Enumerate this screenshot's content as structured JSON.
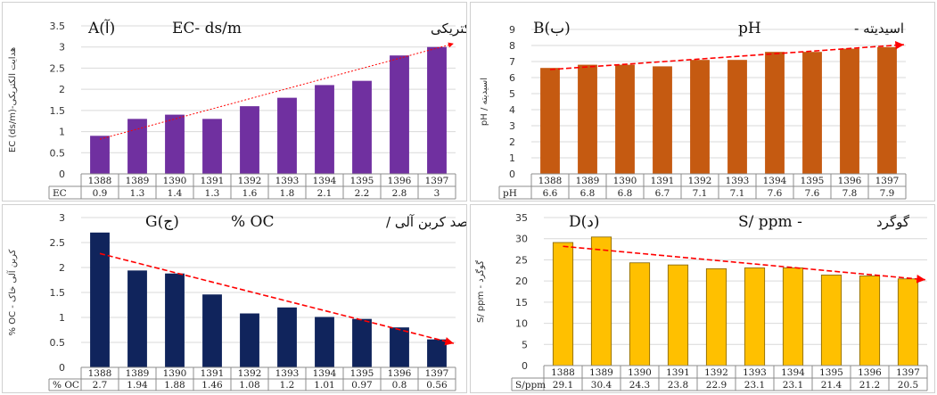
{
  "chart_data": [
    {
      "type": "bar",
      "panel_label": "A(آ)",
      "title": "EC- ds/m",
      "title_fa": "هدایت الکتریکی",
      "ylabel": "EC (ds/m)-هدایت الکتریکی",
      "table_label": "EC",
      "categories": [
        "1388",
        "1389",
        "1390",
        "1391",
        "1392",
        "1393",
        "1394",
        "1395",
        "1396",
        "1397"
      ],
      "values": [
        0.9,
        1.3,
        1.4,
        1.3,
        1.6,
        1.8,
        2.1,
        2.2,
        2.8,
        3
      ],
      "value_labels": [
        "0.9",
        "1.3",
        "1.4",
        "1.3",
        "1.6",
        "1.8",
        "2.1",
        "2.2",
        "2.8",
        "3"
      ],
      "yticks": [
        "0",
        "0.5",
        "1",
        "1.5",
        "2",
        "2.5",
        "3",
        "3.5"
      ],
      "ylim": [
        0,
        3.5
      ],
      "bar_color": "#7030a0",
      "trend_color": "#ff0000",
      "trend": [
        0.82,
        3.08
      ]
    },
    {
      "type": "bar",
      "panel_label": "B(ب)",
      "title": "pH",
      "title_fa": "اسیدیته -",
      "ylabel": "pH / اسیدیته",
      "table_label": "pH",
      "categories": [
        "1388",
        "1389",
        "1390",
        "1391",
        "1392",
        "1393",
        "1394",
        "1395",
        "1396",
        "1397"
      ],
      "values": [
        6.6,
        6.8,
        6.8,
        6.7,
        7.1,
        7.1,
        7.6,
        7.6,
        7.8,
        7.9
      ],
      "value_labels": [
        "6.6",
        "6.8",
        "6.8",
        "6.7",
        "7.1",
        "7.1",
        "7.6",
        "7.6",
        "7.8",
        "7.9"
      ],
      "yticks": [
        "0",
        "1",
        "2",
        "3",
        "4",
        "5",
        "6",
        "7",
        "8",
        "9"
      ],
      "ylim": [
        0,
        9
      ],
      "bar_color": "#c55a11",
      "trend_color": "#ff0000",
      "trend": [
        6.5,
        8.05
      ]
    },
    {
      "type": "bar",
      "panel_label": "G(ج)",
      "title": "% OC",
      "title_fa": "درصد کربن آلی /",
      "ylabel": "% OC - کربن آلی خاک",
      "table_label": "% OC",
      "categories": [
        "1388",
        "1389",
        "1390",
        "1391",
        "1392",
        "1393",
        "1394",
        "1395",
        "1396",
        "1397"
      ],
      "values": [
        2.7,
        1.94,
        1.88,
        1.46,
        1.08,
        1.2,
        1.01,
        0.97,
        0.8,
        0.56
      ],
      "value_labels": [
        "2.7",
        "1.94",
        "1.88",
        "1.46",
        "1.08",
        "1.2",
        "1.01",
        "0.97",
        "0.8",
        "0.56"
      ],
      "yticks": [
        "0",
        "0.5",
        "1",
        "1.5",
        "2",
        "2.5",
        "3"
      ],
      "ylim": [
        0,
        3
      ],
      "bar_color": "#10245c",
      "trend_color": "#ff0000",
      "trend": [
        2.28,
        0.48
      ]
    },
    {
      "type": "bar",
      "panel_label": "D(د)",
      "title": "S/ ppm -",
      "title_fa": "گوگرد",
      "ylabel": "S/ ppm - گوگرد",
      "table_label": "S/ppm",
      "categories": [
        "1388",
        "1389",
        "1390",
        "1391",
        "1392",
        "1393",
        "1394",
        "1395",
        "1396",
        "1397"
      ],
      "values": [
        29.1,
        30.4,
        24.3,
        23.8,
        22.9,
        23.1,
        23.1,
        21.4,
        21.2,
        20.5
      ],
      "value_labels": [
        "29.1",
        "30.4",
        "24.3",
        "23.8",
        "22.9",
        "23.1",
        "23.1",
        "21.4",
        "21.2",
        "20.5"
      ],
      "yticks": [
        "0",
        "5",
        "10",
        "15",
        "20",
        "25",
        "30",
        "35"
      ],
      "ylim": [
        0,
        35
      ],
      "bar_color": "#ffc000",
      "bar_stroke": "#7f6000",
      "trend_color": "#ff0000",
      "trend": [
        28.2,
        20.3
      ]
    }
  ]
}
